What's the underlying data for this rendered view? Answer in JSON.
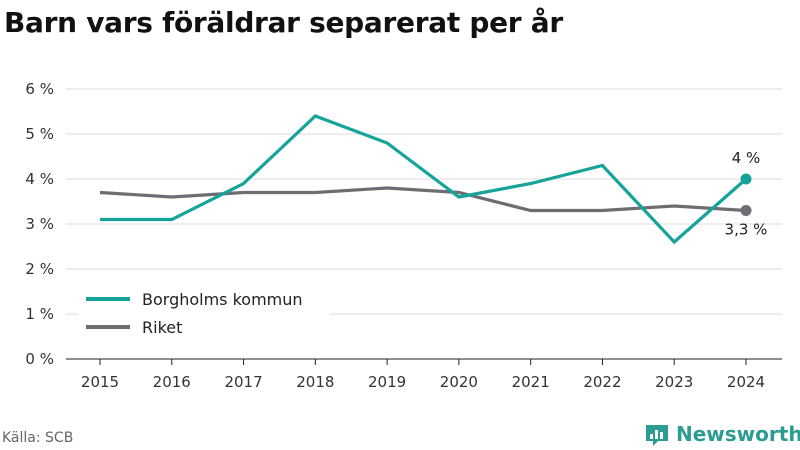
{
  "title": "Barn vars föräldrar separerat per år",
  "source": "Källa: SCB",
  "brand": {
    "name": "Newsworthy",
    "icon": "newsworthy-logo-icon",
    "color": "#2a9c91"
  },
  "colors": {
    "kommun": "#16a39a",
    "riket": "#6e6d73",
    "grid": "#dddddd",
    "axis": "#222222"
  },
  "chart_data": {
    "type": "line",
    "title": "Barn vars föräldrar separerat per år",
    "x": [
      "2015",
      "2016",
      "2017",
      "2018",
      "2019",
      "2020",
      "2021",
      "2022",
      "2023",
      "2024"
    ],
    "ylim": [
      0,
      6
    ],
    "yticks": [
      "0 %",
      "1 %",
      "2 %",
      "3 %",
      "4 %",
      "5 %",
      "6 %"
    ],
    "grid": true,
    "legend": "bottom-left",
    "series": [
      {
        "name": "Borgholms kommun",
        "values": [
          3.1,
          3.1,
          3.9,
          5.4,
          4.8,
          3.6,
          3.9,
          4.3,
          2.6,
          4.0
        ],
        "end_label": "4 %"
      },
      {
        "name": "Riket",
        "values": [
          3.7,
          3.6,
          3.7,
          3.7,
          3.8,
          3.7,
          3.3,
          3.3,
          3.4,
          3.3
        ],
        "end_label": "3,3 %"
      }
    ]
  }
}
